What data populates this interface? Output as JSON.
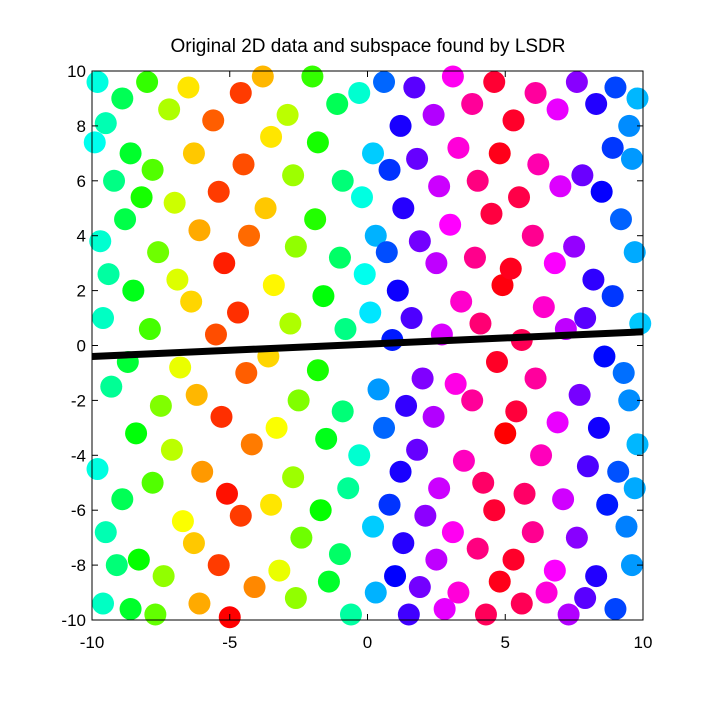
{
  "chart_data": {
    "type": "scatter",
    "title": "Original 2D data and subspace found by LSDR",
    "xlabel": "",
    "ylabel": "",
    "xlim": [
      -10,
      10
    ],
    "ylim": [
      -10,
      10
    ],
    "x_ticks": [
      {
        "value": -10,
        "label": "-10"
      },
      {
        "value": -5,
        "label": "-5"
      },
      {
        "value": 0,
        "label": "0"
      },
      {
        "value": 5,
        "label": "5"
      },
      {
        "value": 10,
        "label": "10"
      }
    ],
    "y_ticks": [
      {
        "value": -10,
        "label": "-10"
      },
      {
        "value": -8,
        "label": "-8"
      },
      {
        "value": -6,
        "label": "-6"
      },
      {
        "value": -4,
        "label": "-4"
      },
      {
        "value": -2,
        "label": "-2"
      },
      {
        "value": 0,
        "label": "0"
      },
      {
        "value": 2,
        "label": "2"
      },
      {
        "value": 4,
        "label": "4"
      },
      {
        "value": 6,
        "label": "6"
      },
      {
        "value": 8,
        "label": "8"
      },
      {
        "value": 10,
        "label": "10"
      }
    ],
    "grid": false,
    "legend": "none",
    "colormap": "hsv",
    "point_color_rule": "hue depends on x only: red near x=-5 and x=5, green near x=-9 and x=-1.5, cyan near x=-10 and x=0, blue near x=1, magenta near x=3",
    "subspace_line": {
      "color": "#000000",
      "points": [
        {
          "x": -10,
          "y": -0.4
        },
        {
          "x": 10,
          "y": 0.5
        }
      ]
    },
    "points": [
      {
        "x": -9.8,
        "y": 9.6
      },
      {
        "x": -9.5,
        "y": 8.1
      },
      {
        "x": -9.2,
        "y": 6.0
      },
      {
        "x": -9.7,
        "y": 3.8
      },
      {
        "x": -9.6,
        "y": 1.0
      },
      {
        "x": -9.3,
        "y": -1.5
      },
      {
        "x": -9.8,
        "y": -4.5
      },
      {
        "x": -9.5,
        "y": -6.8
      },
      {
        "x": -9.6,
        "y": -9.4
      },
      {
        "x": -9.1,
        "y": -8.0
      },
      {
        "x": -9.9,
        "y": 7.4
      },
      {
        "x": -9.4,
        "y": 2.6
      },
      {
        "x": -8.9,
        "y": 9.0
      },
      {
        "x": -8.6,
        "y": 7.0
      },
      {
        "x": -8.8,
        "y": 4.6
      },
      {
        "x": -8.5,
        "y": 2.0
      },
      {
        "x": -8.7,
        "y": -0.6
      },
      {
        "x": -8.4,
        "y": -3.2
      },
      {
        "x": -8.9,
        "y": -5.6
      },
      {
        "x": -8.3,
        "y": -7.8
      },
      {
        "x": -8.6,
        "y": -9.6
      },
      {
        "x": -8.2,
        "y": 5.4
      },
      {
        "x": -8.0,
        "y": 9.6
      },
      {
        "x": -7.8,
        "y": 6.4
      },
      {
        "x": -7.6,
        "y": 3.4
      },
      {
        "x": -7.9,
        "y": 0.6
      },
      {
        "x": -7.5,
        "y": -2.2
      },
      {
        "x": -7.8,
        "y": -5.0
      },
      {
        "x": -7.4,
        "y": -8.4
      },
      {
        "x": -7.7,
        "y": -9.8
      },
      {
        "x": -7.2,
        "y": 8.6
      },
      {
        "x": -7.0,
        "y": 5.2
      },
      {
        "x": -6.9,
        "y": 2.4
      },
      {
        "x": -6.8,
        "y": -0.8
      },
      {
        "x": -7.1,
        "y": -3.8
      },
      {
        "x": -6.7,
        "y": -6.4
      },
      {
        "x": -6.5,
        "y": 9.4
      },
      {
        "x": -6.3,
        "y": 7.0
      },
      {
        "x": -6.1,
        "y": 4.2
      },
      {
        "x": -6.4,
        "y": 1.6
      },
      {
        "x": -6.2,
        "y": -1.8
      },
      {
        "x": -6.0,
        "y": -4.6
      },
      {
        "x": -6.3,
        "y": -7.2
      },
      {
        "x": -6.1,
        "y": -9.4
      },
      {
        "x": -5.6,
        "y": 8.2
      },
      {
        "x": -5.4,
        "y": 5.6
      },
      {
        "x": -5.2,
        "y": 3.0
      },
      {
        "x": -5.5,
        "y": 0.4
      },
      {
        "x": -5.3,
        "y": -2.6
      },
      {
        "x": -5.1,
        "y": -5.4
      },
      {
        "x": -5.4,
        "y": -8.0
      },
      {
        "x": -5.0,
        "y": -9.9
      },
      {
        "x": -4.6,
        "y": 9.2
      },
      {
        "x": -4.5,
        "y": 6.6
      },
      {
        "x": -4.3,
        "y": 4.0
      },
      {
        "x": -4.7,
        "y": 1.2
      },
      {
        "x": -4.4,
        "y": -1.0
      },
      {
        "x": -4.2,
        "y": -3.6
      },
      {
        "x": -4.6,
        "y": -6.2
      },
      {
        "x": -4.1,
        "y": -8.8
      },
      {
        "x": -3.8,
        "y": 9.8
      },
      {
        "x": -3.5,
        "y": 7.6
      },
      {
        "x": -3.7,
        "y": 5.0
      },
      {
        "x": -3.4,
        "y": 2.2
      },
      {
        "x": -3.6,
        "y": -0.4
      },
      {
        "x": -3.3,
        "y": -3.0
      },
      {
        "x": -3.5,
        "y": -5.8
      },
      {
        "x": -3.2,
        "y": -8.2
      },
      {
        "x": -2.9,
        "y": 8.4
      },
      {
        "x": -2.7,
        "y": 6.2
      },
      {
        "x": -2.6,
        "y": 3.6
      },
      {
        "x": -2.8,
        "y": 0.8
      },
      {
        "x": -2.5,
        "y": -2.0
      },
      {
        "x": -2.7,
        "y": -4.8
      },
      {
        "x": -2.4,
        "y": -7.0
      },
      {
        "x": -2.6,
        "y": -9.2
      },
      {
        "x": -2.0,
        "y": 9.8
      },
      {
        "x": -1.8,
        "y": 7.4
      },
      {
        "x": -1.9,
        "y": 4.6
      },
      {
        "x": -1.6,
        "y": 1.8
      },
      {
        "x": -1.8,
        "y": -0.9
      },
      {
        "x": -1.5,
        "y": -3.4
      },
      {
        "x": -1.7,
        "y": -6.0
      },
      {
        "x": -1.4,
        "y": -8.6
      },
      {
        "x": -1.1,
        "y": 8.8
      },
      {
        "x": -0.9,
        "y": 6.0
      },
      {
        "x": -1.0,
        "y": 3.2
      },
      {
        "x": -0.8,
        "y": 0.6
      },
      {
        "x": -0.9,
        "y": -2.4
      },
      {
        "x": -0.7,
        "y": -5.2
      },
      {
        "x": -1.0,
        "y": -7.6
      },
      {
        "x": -0.6,
        "y": -9.8
      },
      {
        "x": -0.3,
        "y": 9.2
      },
      {
        "x": -0.2,
        "y": 5.4
      },
      {
        "x": -0.1,
        "y": 2.6
      },
      {
        "x": -0.3,
        "y": -4.0
      },
      {
        "x": 0.2,
        "y": 7.0
      },
      {
        "x": 0.3,
        "y": 4.0
      },
      {
        "x": 0.1,
        "y": 1.2
      },
      {
        "x": 0.4,
        "y": -1.6
      },
      {
        "x": 0.2,
        "y": -6.6
      },
      {
        "x": 0.3,
        "y": -9.0
      },
      {
        "x": 0.6,
        "y": 9.6
      },
      {
        "x": 0.8,
        "y": 6.4
      },
      {
        "x": 0.7,
        "y": 3.4
      },
      {
        "x": 0.9,
        "y": 0.2
      },
      {
        "x": 0.6,
        "y": -3.0
      },
      {
        "x": 0.8,
        "y": -5.8
      },
      {
        "x": 1.0,
        "y": -8.4
      },
      {
        "x": 1.2,
        "y": 8.0
      },
      {
        "x": 1.3,
        "y": 5.0
      },
      {
        "x": 1.1,
        "y": 2.0
      },
      {
        "x": 1.4,
        "y": -2.2
      },
      {
        "x": 1.2,
        "y": -4.6
      },
      {
        "x": 1.3,
        "y": -7.2
      },
      {
        "x": 1.5,
        "y": -9.8
      },
      {
        "x": 1.7,
        "y": 9.4
      },
      {
        "x": 1.8,
        "y": 6.8
      },
      {
        "x": 1.9,
        "y": 3.8
      },
      {
        "x": 1.6,
        "y": 1.0
      },
      {
        "x": 2.0,
        "y": -1.2
      },
      {
        "x": 1.8,
        "y": -3.8
      },
      {
        "x": 2.1,
        "y": -6.2
      },
      {
        "x": 1.9,
        "y": -8.8
      },
      {
        "x": 2.4,
        "y": 8.4
      },
      {
        "x": 2.6,
        "y": 5.8
      },
      {
        "x": 2.5,
        "y": 3.0
      },
      {
        "x": 2.7,
        "y": 0.4
      },
      {
        "x": 2.4,
        "y": -2.6
      },
      {
        "x": 2.6,
        "y": -5.2
      },
      {
        "x": 2.5,
        "y": -7.8
      },
      {
        "x": 2.8,
        "y": -9.6
      },
      {
        "x": 3.1,
        "y": 9.8
      },
      {
        "x": 3.3,
        "y": 7.2
      },
      {
        "x": 3.0,
        "y": 4.4
      },
      {
        "x": 3.4,
        "y": 1.6
      },
      {
        "x": 3.2,
        "y": -1.4
      },
      {
        "x": 3.5,
        "y": -4.2
      },
      {
        "x": 3.1,
        "y": -6.8
      },
      {
        "x": 3.3,
        "y": -9.0
      },
      {
        "x": 3.8,
        "y": 8.8
      },
      {
        "x": 4.0,
        "y": 6.0
      },
      {
        "x": 3.9,
        "y": 3.2
      },
      {
        "x": 4.1,
        "y": 0.8
      },
      {
        "x": 3.8,
        "y": -2.0
      },
      {
        "x": 4.2,
        "y": -5.0
      },
      {
        "x": 4.0,
        "y": -7.4
      },
      {
        "x": 4.3,
        "y": -9.8
      },
      {
        "x": 4.6,
        "y": 9.6
      },
      {
        "x": 4.8,
        "y": 7.0
      },
      {
        "x": 4.5,
        "y": 4.8
      },
      {
        "x": 4.9,
        "y": 2.2
      },
      {
        "x": 4.7,
        "y": -0.6
      },
      {
        "x": 5.0,
        "y": -3.2
      },
      {
        "x": 4.6,
        "y": -6.0
      },
      {
        "x": 4.8,
        "y": -8.6
      },
      {
        "x": 5.3,
        "y": 8.2
      },
      {
        "x": 5.5,
        "y": 5.4
      },
      {
        "x": 5.2,
        "y": 2.8
      },
      {
        "x": 5.6,
        "y": 0.2
      },
      {
        "x": 5.4,
        "y": -2.4
      },
      {
        "x": 5.7,
        "y": -5.4
      },
      {
        "x": 5.3,
        "y": -7.8
      },
      {
        "x": 5.6,
        "y": -9.4
      },
      {
        "x": 6.1,
        "y": 9.2
      },
      {
        "x": 6.2,
        "y": 6.6
      },
      {
        "x": 6.0,
        "y": 4.0
      },
      {
        "x": 6.4,
        "y": 1.4
      },
      {
        "x": 6.1,
        "y": -1.2
      },
      {
        "x": 6.3,
        "y": -4.0
      },
      {
        "x": 6.0,
        "y": -6.8
      },
      {
        "x": 6.5,
        "y": -9.0
      },
      {
        "x": 6.9,
        "y": 8.6
      },
      {
        "x": 7.0,
        "y": 5.8
      },
      {
        "x": 6.8,
        "y": 3.0
      },
      {
        "x": 7.2,
        "y": 0.6
      },
      {
        "x": 6.9,
        "y": -2.8
      },
      {
        "x": 7.1,
        "y": -5.6
      },
      {
        "x": 6.8,
        "y": -8.2
      },
      {
        "x": 7.3,
        "y": -9.8
      },
      {
        "x": 7.6,
        "y": 9.6
      },
      {
        "x": 7.8,
        "y": 6.2
      },
      {
        "x": 7.5,
        "y": 3.6
      },
      {
        "x": 7.9,
        "y": 1.0
      },
      {
        "x": 7.7,
        "y": -1.8
      },
      {
        "x": 8.0,
        "y": -4.4
      },
      {
        "x": 7.6,
        "y": -7.0
      },
      {
        "x": 7.9,
        "y": -9.2
      },
      {
        "x": 8.3,
        "y": 8.8
      },
      {
        "x": 8.5,
        "y": 5.6
      },
      {
        "x": 8.2,
        "y": 2.4
      },
      {
        "x": 8.6,
        "y": -0.4
      },
      {
        "x": 8.4,
        "y": -3.0
      },
      {
        "x": 8.7,
        "y": -5.8
      },
      {
        "x": 8.3,
        "y": -8.4
      },
      {
        "x": 8.9,
        "y": 7.2
      },
      {
        "x": 9.0,
        "y": 9.4
      },
      {
        "x": 9.2,
        "y": 4.6
      },
      {
        "x": 8.9,
        "y": 1.8
      },
      {
        "x": 9.3,
        "y": -1.0
      },
      {
        "x": 9.1,
        "y": -4.6
      },
      {
        "x": 9.4,
        "y": -6.6
      },
      {
        "x": 9.0,
        "y": -9.6
      },
      {
        "x": 9.6,
        "y": 6.8
      },
      {
        "x": 9.7,
        "y": 3.4
      },
      {
        "x": 9.5,
        "y": -2.0
      },
      {
        "x": 9.8,
        "y": -3.6
      },
      {
        "x": 9.6,
        "y": -8.0
      },
      {
        "x": 9.8,
        "y": 9.0
      },
      {
        "x": 9.9,
        "y": 0.8
      },
      {
        "x": 9.7,
        "y": -5.2
      },
      {
        "x": 9.5,
        "y": 8.0
      }
    ]
  }
}
